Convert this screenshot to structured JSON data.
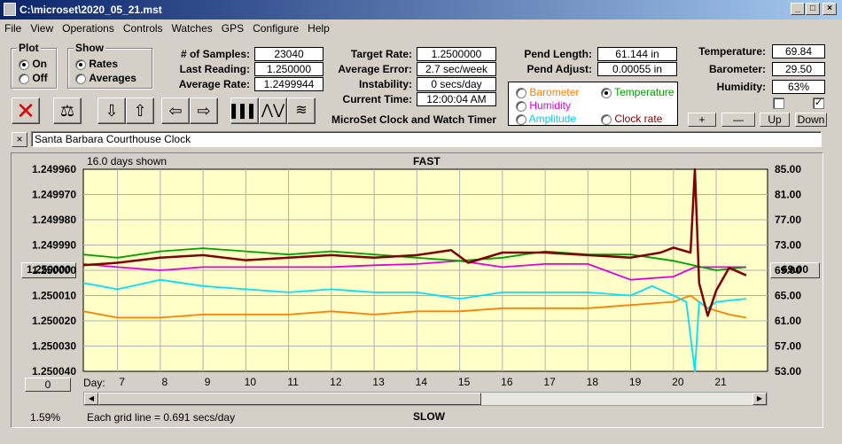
{
  "window": {
    "title": "C:\\microset\\2020_05_21.mst"
  },
  "menu": [
    "File",
    "View",
    "Operations",
    "Controls",
    "Watches",
    "GPS",
    "Configure",
    "Help"
  ],
  "plot": {
    "title": "Plot",
    "on": "On",
    "off": "Off"
  },
  "show": {
    "title": "Show",
    "rates": "Rates",
    "averages": "Averages"
  },
  "stats": {
    "samples_label": "# of Samples:",
    "samples": "23040",
    "last_label": "Last Reading:",
    "last": "1.250000",
    "avg_label": "Average Rate:",
    "avg": "1.2499944",
    "target_label": "Target Rate:",
    "target": "1.2500000",
    "avgerr_label": "Average Error:",
    "avgerr": "2.7 sec/week",
    "instab_label": "Instability:",
    "instab": "0 secs/day",
    "time_label": "Current Time:",
    "time": "12:00:04 AM",
    "pendlen_label": "Pend Length:",
    "pendlen": "61.144 in",
    "pendadj_label": "Pend Adjust:",
    "pendadj": "0.00055 in",
    "temp_label": "Temperature:",
    "temp": "69.84",
    "baro_label": "Barometer:",
    "baro": "29.50",
    "hum_label": "Humidity:",
    "hum": "63%"
  },
  "app_name": "MicroSet Clock and Watch Timer",
  "options": {
    "barometer": "Barometer",
    "temperature": "Temperature",
    "humidity": "Humidity",
    "amplitude": "Amplitude",
    "clockrate": "Clock rate"
  },
  "buttons": {
    "plus": "+",
    "minus": "—",
    "up": "Up",
    "down": "Down",
    "x": "×"
  },
  "clock_name": "Santa Barbara Courthouse Clock",
  "chart_data": {
    "type": "line",
    "top_label": "FAST",
    "bottom_label": "SLOW",
    "days_shown": "16.0 days shown",
    "grid_note": "Each grid line = 0.691 secs/day",
    "percent": "1.59%",
    "left_button": "0",
    "left_center_value": "1.250000",
    "right_center_value": "69.00",
    "day_label": "Day:",
    "left_ticks": [
      "1.249960",
      "1.249970",
      "1.249980",
      "1.249990",
      "1.250000",
      "1.250010",
      "1.250020",
      "1.250030",
      "1.250040"
    ],
    "right_ticks": [
      "85.00",
      "81.00",
      "77.00",
      "73.00",
      "69.00",
      "65.00",
      "61.00",
      "57.00",
      "53.00"
    ],
    "x_ticks": [
      "7",
      "8",
      "9",
      "10",
      "11",
      "12",
      "13",
      "14",
      "15",
      "16",
      "17",
      "18",
      "19",
      "20",
      "21"
    ],
    "x_range": [
      6.2,
      22.2
    ],
    "left_ylim": [
      1.24996,
      1.25004
    ],
    "right_ylim": [
      53,
      85
    ],
    "series": [
      {
        "name": "Clock rate",
        "color": "#800000",
        "axis": "left",
        "x": [
          6.2,
          7,
          8,
          9,
          10,
          11,
          12,
          13,
          14,
          14.8,
          15.2,
          16,
          17,
          18,
          19,
          19.7,
          20,
          20.4,
          20.5,
          20.6,
          20.8,
          21,
          21.3,
          21.7
        ],
        "y": [
          1.249998,
          1.249997,
          1.249995,
          1.249994,
          1.249996,
          1.249995,
          1.249994,
          1.249995,
          1.249994,
          1.249992,
          1.249997,
          1.249993,
          1.249993,
          1.249994,
          1.249995,
          1.249993,
          1.249991,
          1.249993,
          1.24996,
          1.250005,
          1.250018,
          1.250008,
          1.249999,
          1.250002
        ]
      },
      {
        "name": "Temperature",
        "color": "#00a000",
        "axis": "right",
        "x": [
          6.2,
          7,
          8,
          9,
          10,
          11,
          12,
          13,
          14,
          15,
          16,
          17,
          18,
          19,
          20,
          21,
          21.7
        ],
        "y": [
          71.5,
          71,
          72,
          72.5,
          72,
          71.5,
          72,
          71.5,
          71,
          70.5,
          71,
          72,
          71.5,
          71.5,
          70.5,
          69,
          69.5
        ]
      },
      {
        "name": "Humidity",
        "color": "#e000e0",
        "axis": "right",
        "x": [
          6.2,
          7,
          8,
          9,
          10,
          11,
          12,
          13,
          14,
          15,
          16,
          17,
          18,
          19,
          20,
          20.5,
          21,
          21.7
        ],
        "y": [
          70,
          69.5,
          69,
          69.5,
          69.5,
          69.5,
          69.5,
          69.8,
          70,
          70.5,
          69.5,
          70,
          70,
          67.5,
          68,
          69.5,
          69.5,
          69.5
        ]
      },
      {
        "name": "Amplitude",
        "color": "#00e0ff",
        "axis": "right",
        "x": [
          6.2,
          7,
          8,
          9,
          10,
          11,
          12,
          13,
          14,
          15,
          16,
          17,
          18,
          19,
          19.5,
          20,
          20.3,
          20.5,
          20.6,
          20.8,
          21,
          21.7
        ],
        "y": [
          67,
          66,
          67.5,
          66.5,
          66,
          65.5,
          66,
          65.5,
          65.5,
          64.5,
          65.5,
          65.5,
          65.5,
          65,
          66.5,
          65,
          64,
          53,
          64,
          63,
          64,
          64.5
        ]
      },
      {
        "name": "Barometer",
        "color": "#ff8000",
        "axis": "right",
        "x": [
          6.2,
          7,
          8,
          9,
          10,
          11,
          12,
          13,
          14,
          15,
          16,
          17,
          18,
          19,
          20,
          20.4,
          20.8,
          21.3,
          21.7
        ],
        "y": [
          62.5,
          61.5,
          61.5,
          62,
          62,
          62,
          62.5,
          62,
          62.5,
          62.5,
          63,
          63,
          63,
          63.5,
          64,
          65,
          63,
          62,
          61.5
        ]
      }
    ]
  }
}
